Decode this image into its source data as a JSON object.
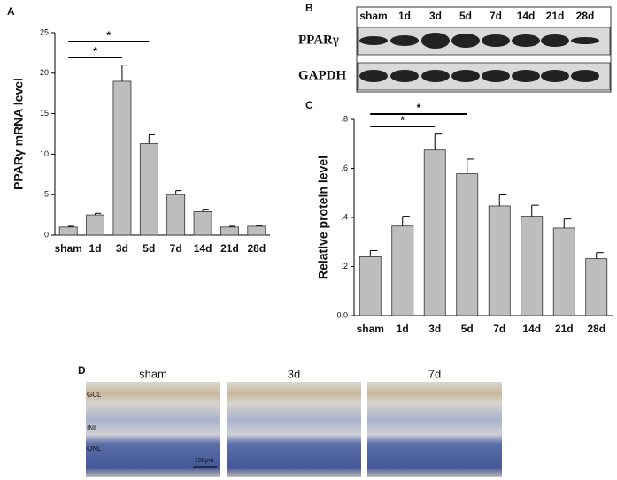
{
  "panel_labels": [
    "A",
    "B",
    "C",
    "D"
  ],
  "chart_data": [
    {
      "type": "bar",
      "y_label": "PPARγ mRNA level",
      "categories": [
        "sham",
        "1d",
        "3d",
        "5d",
        "7d",
        "14d",
        "21d",
        "28d"
      ],
      "values": [
        1.0,
        2.5,
        19.0,
        11.3,
        5.0,
        2.9,
        1.0,
        1.1
      ],
      "errors": [
        0.1,
        0.2,
        2.0,
        1.1,
        0.5,
        0.3,
        0.1,
        0.1
      ],
      "color": "#bdbdbd",
      "ylim": [
        0,
        25
      ],
      "yticks": [
        0,
        5,
        10,
        15,
        20,
        25
      ],
      "significance": [
        {
          "label": "*",
          "from": "sham",
          "to": "5d"
        },
        {
          "label": "*",
          "from": "sham",
          "to": "3d"
        }
      ]
    },
    {
      "type": "bar",
      "y_label": "Relative protein level",
      "categories": [
        "sham",
        "1d",
        "3d",
        "5d",
        "7d",
        "14d",
        "21d",
        "28d"
      ],
      "values": [
        0.24,
        0.365,
        0.675,
        0.578,
        0.447,
        0.405,
        0.357,
        0.232
      ],
      "errors": [
        0.025,
        0.04,
        0.065,
        0.06,
        0.045,
        0.045,
        0.037,
        0.025
      ],
      "color": "#bdbdbd",
      "ylim": [
        0,
        0.8
      ],
      "yticks": [
        {
          "value": 0,
          "label": "0.0"
        },
        {
          "value": 0.2,
          "label": ".2"
        },
        {
          "value": 0.4,
          "label": ".4"
        },
        {
          "value": 0.6,
          "label": ".6"
        },
        {
          "value": 0.8,
          "label": ".8"
        }
      ],
      "significance": [
        {
          "label": "*",
          "from": "sham",
          "to": "5d"
        },
        {
          "label": "*",
          "from": "sham",
          "to": "3d"
        }
      ]
    }
  ],
  "blot": {
    "lanes": [
      "sham",
      "1d",
      "3d",
      "5d",
      "7d",
      "14d",
      "21d",
      "28d"
    ],
    "rows": [
      "PPARγ",
      "GAPDH"
    ]
  },
  "histology": {
    "titles": [
      "sham",
      "3d",
      "7d"
    ],
    "layers": [
      "GCL",
      "INL",
      "ONL"
    ],
    "scale_bar": "100μm"
  }
}
